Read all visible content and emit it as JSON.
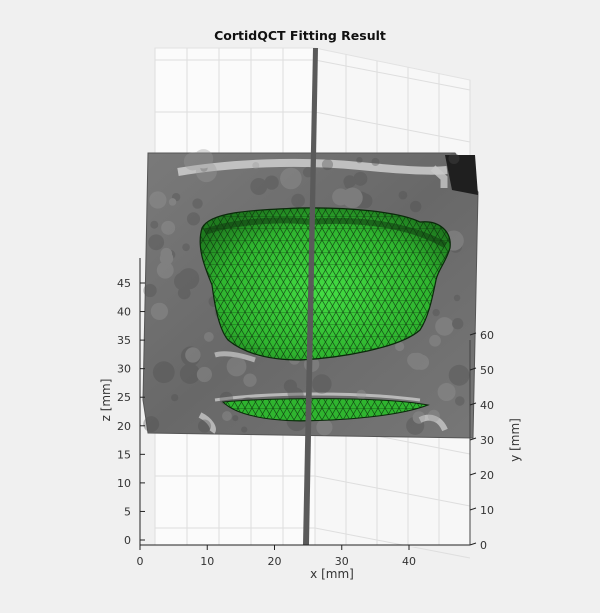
{
  "chart_data": {
    "type": "3d-surface",
    "title": "CortidQCT Fitting Result",
    "xlabel": "x [mm]",
    "ylabel": "y [mm]",
    "zlabel": "z [mm]",
    "x_ticks": [
      0,
      10,
      20,
      30,
      40
    ],
    "y_ticks": [
      0,
      10,
      20,
      30,
      40,
      50,
      60
    ],
    "z_ticks": [
      0,
      5,
      10,
      15,
      20,
      25,
      30,
      35,
      40,
      45
    ],
    "grid": true,
    "colors": {
      "mesh_fill": "#33cc33",
      "mesh_edge": "#0a2a0a",
      "ct_slice": "#6f6f6f",
      "bone_bright": "#cfcfcf",
      "background": "#f0f0f0"
    }
  }
}
